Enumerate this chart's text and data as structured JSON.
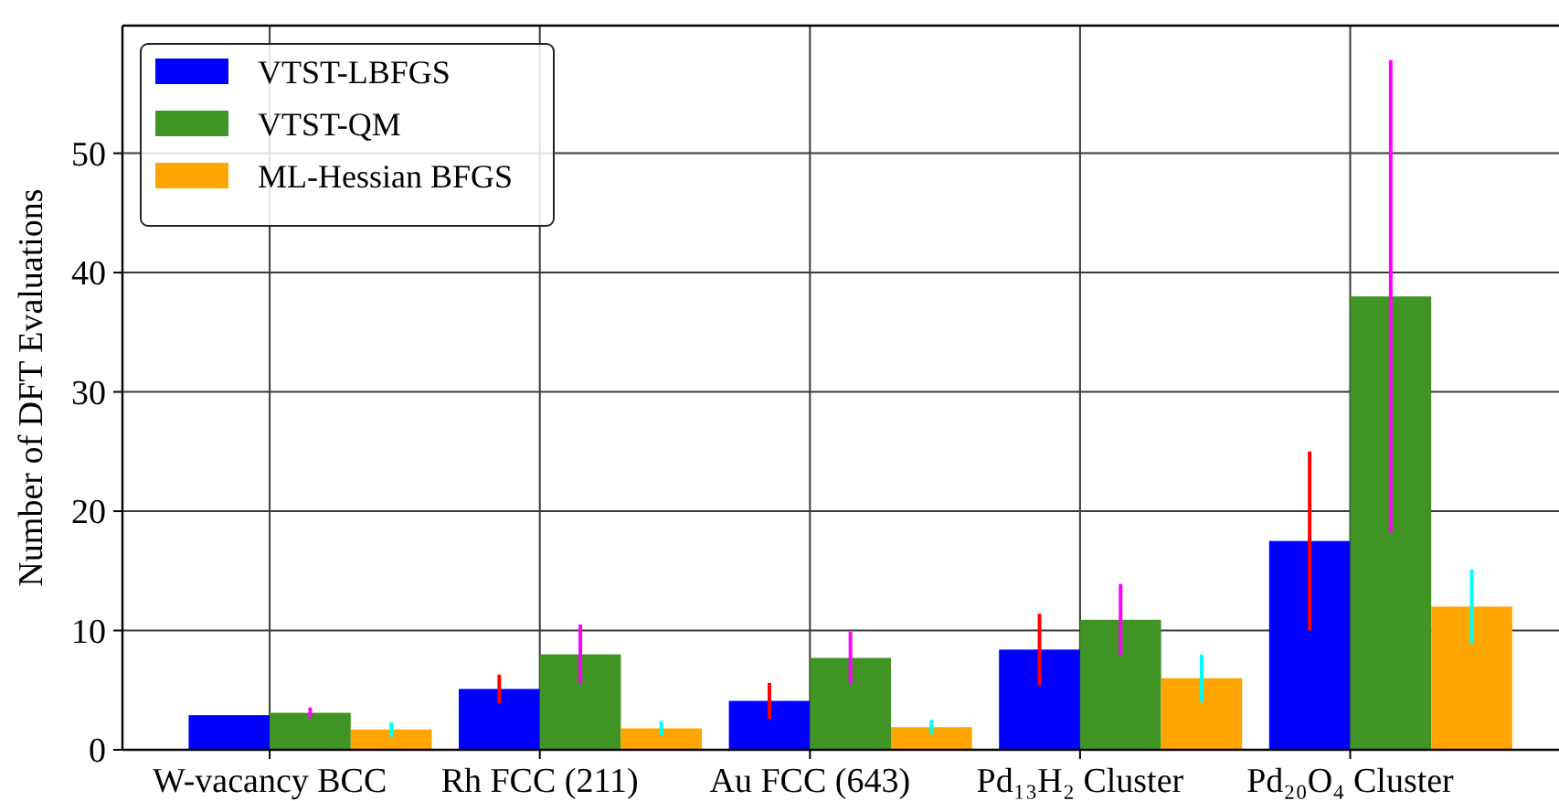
{
  "chart_data": {
    "type": "bar",
    "ylabel": "Number of DFT Evaluations",
    "categories": [
      "W-vacancy BCC",
      "Rh FCC (211)",
      "Au FCC (643)",
      "Pd₁₃H₂ Cluster",
      "Pd₂₀O₄ Cluster"
    ],
    "series": [
      {
        "name": "VTST-LBFGS",
        "color": "#0000ff",
        "values": [
          2.9,
          5.1,
          4.1,
          8.4,
          17.5
        ],
        "errors": [
          null,
          1.2,
          1.5,
          3.0,
          7.5
        ]
      },
      {
        "name": "VTST-QM",
        "color": "#409424",
        "values": [
          3.1,
          8.0,
          7.7,
          10.9,
          38.0
        ],
        "errors": [
          0.45,
          2.5,
          2.2,
          3.0,
          19.8
        ]
      },
      {
        "name": "ML-Hessian BFGS",
        "color": "#ffa500",
        "values": [
          1.7,
          1.8,
          1.9,
          6.0,
          12.0
        ],
        "errors": [
          0.6,
          0.6,
          0.6,
          2.0,
          3.1
        ]
      }
    ],
    "ylim": [
      0,
      60.7
    ],
    "yticks": [
      0,
      10,
      20,
      30,
      40,
      50
    ],
    "grid": true,
    "legend": "top left"
  }
}
